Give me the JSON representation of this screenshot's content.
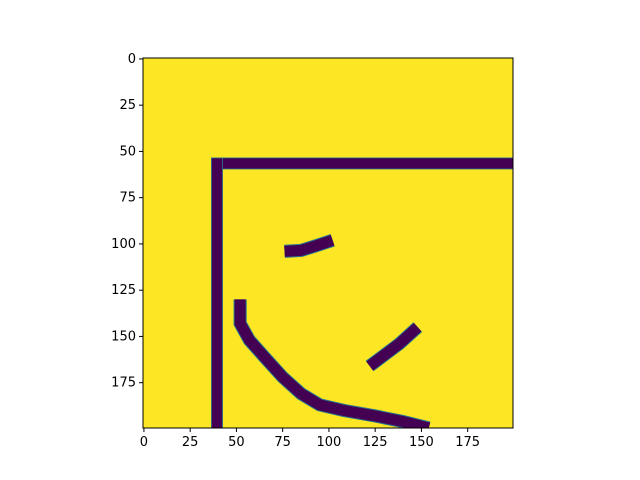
{
  "chart_data": {
    "type": "heatmap",
    "title": "",
    "xlabel": "",
    "ylabel": "",
    "image_shape": [
      200,
      200
    ],
    "xlim": [
      -0.5,
      199.5
    ],
    "ylim": [
      199.5,
      -0.5
    ],
    "y_axis_inverted": true,
    "grid": false,
    "colormap": "viridis",
    "background_value": 1,
    "foreground_value": 0,
    "background_color": "#fde725",
    "foreground_color": "#440154",
    "outline_color": "#2a788e",
    "x_ticks": [
      0,
      25,
      50,
      75,
      100,
      125,
      150,
      175
    ],
    "x_tick_labels": [
      "0",
      "25",
      "50",
      "75",
      "100",
      "125",
      "150",
      "175"
    ],
    "y_ticks": [
      0,
      25,
      50,
      75,
      100,
      125,
      150,
      175
    ],
    "y_tick_labels": [
      "0",
      "25",
      "50",
      "75",
      "100",
      "125",
      "150",
      "175"
    ],
    "foreground_features": [
      {
        "name": "top-border-bar",
        "shape": "rect",
        "x": [
          36.5,
          199.5
        ],
        "y": [
          53.5,
          59.5
        ]
      },
      {
        "name": "left-border-bar",
        "shape": "rect",
        "x": [
          36.5,
          42.5
        ],
        "y": [
          53.5,
          199.5
        ]
      },
      {
        "name": "upper-short-stroke",
        "shape": "polyline",
        "width": 6,
        "points": [
          [
            76,
            104
          ],
          [
            85,
            103.5
          ],
          [
            93,
            101
          ],
          [
            102,
            98
          ]
        ]
      },
      {
        "name": "right-diagonal-stroke",
        "shape": "polyline",
        "width": 6,
        "points": [
          [
            122,
            166
          ],
          [
            130,
            160
          ],
          [
            138,
            154
          ],
          [
            148,
            145
          ]
        ]
      },
      {
        "name": "lower-curved-stroke",
        "shape": "polyline",
        "width": 6,
        "points": [
          [
            52,
            130
          ],
          [
            52,
            143
          ],
          [
            57,
            152
          ],
          [
            65,
            161
          ],
          [
            75,
            172
          ],
          [
            85,
            181
          ],
          [
            95,
            187
          ],
          [
            108,
            190
          ],
          [
            125,
            193
          ],
          [
            140,
            196
          ],
          [
            154,
            199.5
          ]
        ]
      }
    ]
  }
}
